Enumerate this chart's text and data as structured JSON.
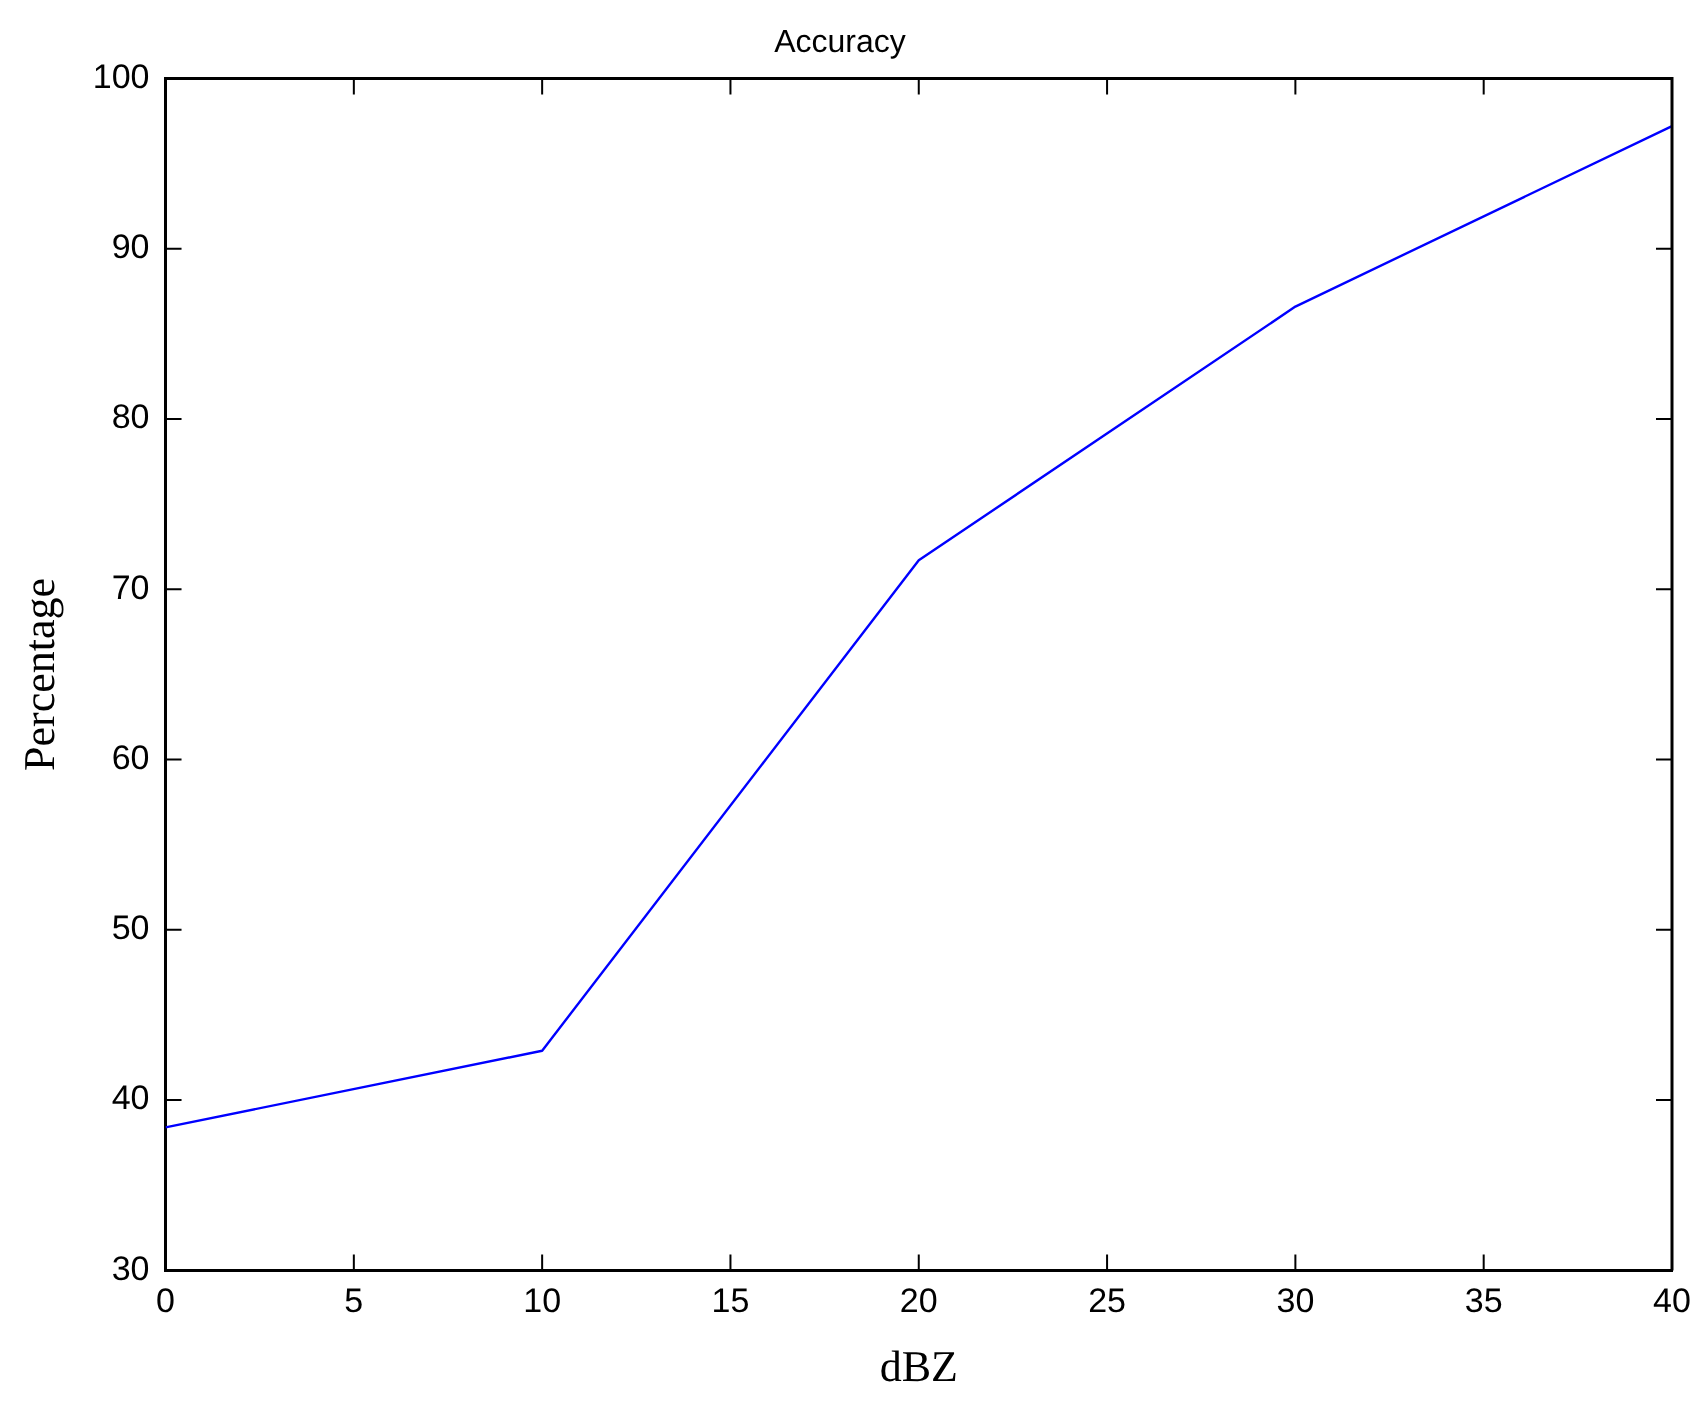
{
  "chart_data": {
    "type": "line",
    "title": "Accuracy",
    "xlabel": "dBZ",
    "ylabel": "Percentage",
    "x": [
      0,
      10,
      20,
      30,
      40
    ],
    "series": [
      {
        "color": "#0000ff",
        "values": [
          38.4,
          42.9,
          71.7,
          86.6,
          97.2
        ]
      }
    ],
    "xlim": [
      0,
      40
    ],
    "xticks": [
      0,
      5,
      10,
      15,
      20,
      25,
      30,
      35,
      40
    ],
    "ylim": [
      30,
      100
    ],
    "yticks": [
      30,
      40,
      50,
      60,
      70,
      80,
      90,
      100
    ],
    "grid": false,
    "legend": false,
    "marker": "none",
    "line_style": "solid"
  }
}
